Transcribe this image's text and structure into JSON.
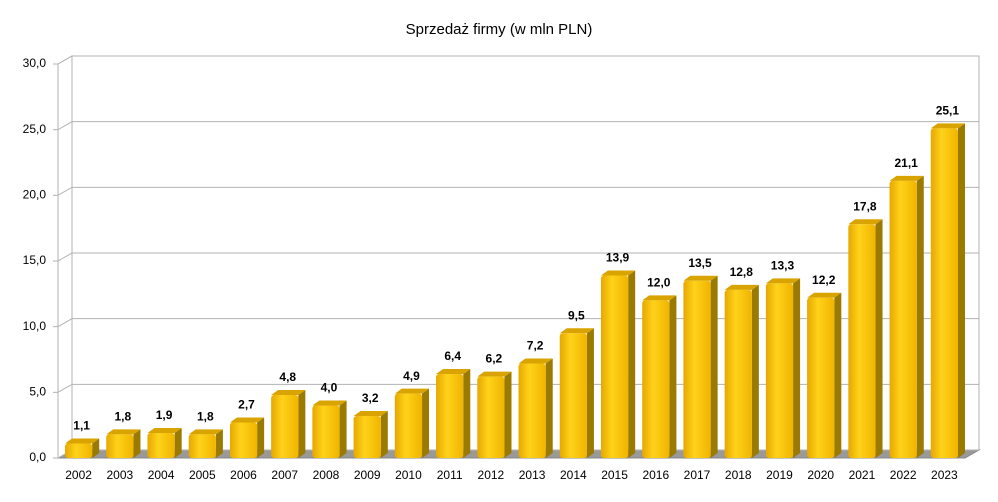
{
  "chart_data": {
    "type": "bar",
    "title": "Sprzedaż firmy (w mln PLN)",
    "categories": [
      "2002",
      "2003",
      "2004",
      "2005",
      "2006",
      "2007",
      "2008",
      "2009",
      "2010",
      "2011",
      "2012",
      "2013",
      "2014",
      "2015",
      "2016",
      "2017",
      "2018",
      "2019",
      "2020",
      "2021",
      "2022",
      "2023"
    ],
    "values": [
      1.1,
      1.8,
      1.9,
      1.8,
      2.7,
      4.8,
      4.0,
      3.2,
      4.9,
      6.4,
      6.2,
      7.2,
      9.5,
      13.9,
      12.0,
      13.5,
      12.8,
      13.3,
      12.2,
      17.8,
      21.1,
      25.1
    ],
    "value_labels": [
      "1,1",
      "1,8",
      "1,9",
      "1,8",
      "2,7",
      "4,8",
      "4,0",
      "3,2",
      "4,9",
      "6,4",
      "6,2",
      "7,2",
      "9,5",
      "13,9",
      "12,0",
      "13,5",
      "12,8",
      "13,3",
      "12,2",
      "17,8",
      "21,1",
      "25,1"
    ],
    "color": "#ffc000",
    "ylim": [
      0,
      30
    ],
    "yticks": [
      {
        "value": 0,
        "label": "0,0"
      },
      {
        "value": 5,
        "label": "5,0"
      },
      {
        "value": 10,
        "label": "10,0"
      },
      {
        "value": 15,
        "label": "15,0"
      },
      {
        "value": 20,
        "label": "20,0"
      },
      {
        "value": 25,
        "label": "25,0"
      },
      {
        "value": 30,
        "label": "30,0"
      }
    ],
    "grid": true
  }
}
